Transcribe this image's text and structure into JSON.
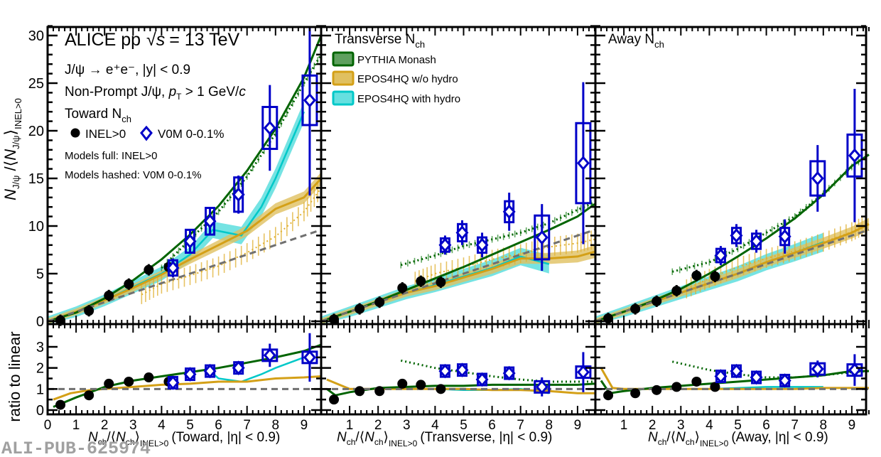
{
  "chart_data": {
    "type": "scatter",
    "title": "ALICE pp √s = 13 TeV",
    "annotations": {
      "experiment": "ALICE pp",
      "sqrt_s": "s",
      "energy": "= 13 TeV",
      "decay": "J/ψ → e⁺e⁻, |y| < 0.9",
      "selection": "Non-Prompt J/ψ, pT > 1 GeV/c",
      "region_toward": "Toward N",
      "region_transverse": "Transverse N",
      "region_away": "Away N",
      "sub_ch": "ch",
      "models_full": "Models full: INEL>0",
      "models_hashed": "Models hashed: V0M 0-0.1%",
      "watermark": "ALI-PUB-625974"
    },
    "legend": {
      "data": [
        {
          "name": "INEL>0",
          "marker": "circle",
          "color": "#000000"
        },
        {
          "name": "V0M 0-0.1%",
          "marker": "open-diamond",
          "color": "#0000c8"
        }
      ],
      "models": [
        {
          "name": "PYTHIA Monash",
          "color": "#006400",
          "fill": "#5fa05f"
        },
        {
          "name": "EPOS4HQ w/o hydro",
          "color": "#d4a017",
          "fill": "#e0c060"
        },
        {
          "name": "EPOS4HQ with hydro",
          "color": "#00c8c8",
          "fill": "#66e0e0"
        }
      ],
      "placement": "top-left"
    },
    "ylabel_top": "N_J/ψ / ⟨N_J/ψ⟩_INEL>0",
    "ylabel_bottom": "ratio to linear",
    "ylim_top": [
      -0.5,
      32
    ],
    "ylim_bottom": [
      -0.2,
      4
    ],
    "yticks_top": [
      "0",
      "5",
      "10",
      "15",
      "20",
      "25",
      "30"
    ],
    "yticks_bottom": [
      "0",
      "1",
      "2",
      "3"
    ],
    "xticks": [
      "0",
      "1",
      "2",
      "3",
      "4",
      "5",
      "6",
      "7",
      "8",
      "9"
    ],
    "xticks_nz": [
      "1",
      "2",
      "3",
      "4",
      "5",
      "6",
      "7",
      "8",
      "9"
    ],
    "xlim": [
      0,
      9.6
    ],
    "panels": [
      {
        "name": "toward",
        "xlabel": "Nch/⟨Nch⟩INEL>0 (Toward, |η| < 0.9)",
        "xlabel_suffix": "(Toward, |η| < 0.9)",
        "inel": {
          "x": [
            0.45,
            1.45,
            2.15,
            2.85,
            3.55,
            4.25
          ],
          "y": [
            0.1,
            1.1,
            2.7,
            3.9,
            5.4,
            5.7
          ],
          "ratio": [
            0.25,
            0.7,
            1.25,
            1.35,
            1.55,
            1.35
          ]
        },
        "v0m": {
          "x": [
            4.4,
            5.0,
            5.7,
            6.7,
            7.8,
            9.2
          ],
          "y": [
            5.6,
            8.4,
            10.5,
            13.3,
            20.3,
            23.2
          ],
          "err": [
            1.0,
            1.3,
            1.5,
            2.0,
            4.5,
            10.0
          ],
          "sys": [
            0.8,
            1.2,
            1.4,
            1.8,
            2.2,
            2.6
          ],
          "ratio": [
            1.3,
            1.7,
            1.85,
            2.0,
            2.6,
            2.5
          ],
          "ratio_err": [
            0.2,
            0.25,
            0.3,
            0.3,
            0.55,
            1.15
          ]
        },
        "pythia": {
          "x": [
            0,
            1,
            2,
            3,
            4,
            5,
            6,
            7,
            8,
            9,
            9.6
          ],
          "y": [
            0,
            0.9,
            2.4,
            4.3,
            6.5,
            9.1,
            12.1,
            15.8,
            20.2,
            25.6,
            30.0
          ]
        },
        "pythia_v0m": {
          "x": [
            4.0,
            5,
            6,
            7,
            8,
            9,
            9.6
          ],
          "y": [
            5.6,
            8.6,
            11.5,
            15.2,
            19.7,
            25.0,
            28.0
          ]
        },
        "epos": {
          "x": [
            0,
            1,
            2,
            3,
            4,
            5,
            6,
            7,
            8,
            9,
            9.6
          ],
          "y": [
            0,
            1.0,
            2.2,
            3.5,
            4.9,
            6.5,
            8.0,
            9.5,
            11.8,
            13.0,
            15.0
          ]
        },
        "epos_v0m": {
          "x": [
            3.3,
            4,
            5,
            6,
            7,
            8,
            9,
            9.6
          ],
          "y": [
            2.8,
            3.9,
            4.8,
            5.8,
            7.2,
            8.9,
            11.5,
            14.0
          ]
        },
        "hydro": {
          "x": [
            0,
            1,
            2,
            3,
            4,
            5,
            5.8,
            6.8,
            7.5,
            8.0,
            9.0
          ],
          "y": [
            0,
            1.0,
            2.2,
            3.6,
            5.0,
            7.0,
            9.6,
            9.0,
            12.0,
            15.0,
            22.0
          ]
        },
        "linear": {
          "x": [
            0,
            9.6
          ],
          "y": [
            0,
            9.6
          ]
        },
        "pythia_ratio": {
          "x": [
            0.2,
            1,
            2,
            3,
            4,
            5,
            6,
            7,
            8,
            9,
            9.6
          ],
          "y": [
            0.15,
            0.6,
            1.1,
            1.4,
            1.6,
            1.8,
            2.0,
            2.25,
            2.5,
            2.8,
            3.1
          ]
        },
        "epos_ratio": {
          "x": [
            0.2,
            0.8,
            1.5,
            2,
            3,
            4,
            5,
            6,
            7,
            8,
            9,
            9.6
          ],
          "y": [
            0.5,
            0.8,
            0.95,
            1.0,
            1.1,
            1.2,
            1.25,
            1.35,
            1.35,
            1.5,
            1.55,
            1.6
          ]
        },
        "hydro_ratio": {
          "x": [
            5.7,
            6.0,
            6.8,
            7.5,
            8.0,
            9.0
          ],
          "y": [
            1.85,
            1.5,
            1.35,
            1.7,
            2.0,
            2.5
          ]
        }
      },
      {
        "name": "transverse",
        "xlabel": "Nch/⟨Nch⟩INEL>0 (Transverse, |η| < 0.9)",
        "xlabel_suffix": "(Transverse, |η| < 0.9)",
        "inel": {
          "x": [
            0.45,
            1.35,
            2.05,
            2.85,
            3.5,
            4.2
          ],
          "y": [
            0.2,
            1.3,
            2.0,
            3.5,
            4.2,
            4.1
          ],
          "ratio": [
            0.5,
            0.9,
            0.9,
            1.25,
            1.2,
            1.0
          ]
        },
        "v0m": {
          "x": [
            4.35,
            4.95,
            5.65,
            6.6,
            7.75,
            9.2
          ],
          "y": [
            8.0,
            9.3,
            8.0,
            11.5,
            8.8,
            16.6
          ],
          "err": [
            1.0,
            1.3,
            1.3,
            2.0,
            3.5,
            8.5
          ],
          "sys": [
            0.7,
            0.9,
            0.8,
            1.1,
            2.3,
            4.2
          ],
          "ratio": [
            1.85,
            1.9,
            1.45,
            1.75,
            1.1,
            1.8
          ],
          "ratio_err": [
            0.25,
            0.25,
            0.3,
            0.3,
            0.45,
            0.95
          ]
        },
        "pythia": {
          "x": [
            0,
            1,
            2,
            3,
            4,
            5,
            6,
            7,
            8,
            9,
            9.6
          ],
          "y": [
            0,
            1.0,
            2.1,
            3.3,
            4.5,
            5.7,
            7.0,
            8.3,
            9.6,
            11.0,
            12.3
          ]
        },
        "pythia_v0m": {
          "x": [
            2.8,
            4,
            5,
            6,
            7,
            8,
            9,
            9.6
          ],
          "y": [
            5.9,
            6.9,
            7.9,
            8.6,
            9.3,
            10.3,
            11.7,
            12.5
          ]
        },
        "epos": {
          "x": [
            0,
            1,
            2,
            3,
            4,
            5,
            6,
            7,
            8,
            9,
            9.6
          ],
          "y": [
            0,
            1.0,
            2.0,
            3.0,
            3.7,
            4.6,
            5.5,
            6.6,
            6.6,
            6.8,
            7.3
          ]
        },
        "epos_v0m": {
          "x": [
            3.3,
            4,
            5,
            6,
            7,
            8,
            9,
            9.6
          ],
          "y": [
            4.2,
            5.0,
            5.7,
            6.5,
            7.1,
            7.8,
            8.2,
            8.6
          ]
        },
        "hydro": {
          "x": [
            0,
            1,
            2,
            3,
            4,
            5,
            6,
            7,
            8
          ],
          "y": [
            0,
            1.0,
            2.0,
            3.0,
            3.8,
            4.7,
            5.6,
            6.8,
            6.0
          ]
        },
        "linear": {
          "x": [
            0,
            9.6
          ],
          "y": [
            0,
            9.6
          ]
        },
        "pythia_ratio": {
          "x": [
            0.2,
            0.5,
            1,
            2,
            3,
            4,
            5,
            6,
            7,
            8,
            9,
            9.6
          ],
          "y": [
            1.0,
            0.7,
            0.85,
            1.05,
            1.1,
            1.15,
            1.15,
            1.2,
            1.2,
            1.2,
            1.2,
            1.25
          ]
        },
        "pythia_v0m_ratio": {
          "x": [
            2.8,
            4,
            5,
            6,
            7,
            8,
            9,
            9.6
          ],
          "y": [
            2.35,
            2.0,
            1.8,
            1.6,
            1.45,
            1.35,
            1.35,
            1.35
          ]
        },
        "epos_ratio": {
          "x": [
            0.2,
            1,
            2,
            3,
            4,
            5,
            6,
            7,
            8,
            9,
            9.6
          ],
          "y": [
            1.45,
            1.0,
            1.0,
            1.0,
            1.0,
            1.0,
            0.95,
            0.95,
            0.9,
            0.8,
            0.8
          ]
        },
        "hydro_ratio": {
          "x": [
            0.2,
            1,
            2,
            3,
            4,
            5,
            6,
            7,
            8
          ],
          "y": [
            1.45,
            1.0,
            1.0,
            1.0,
            1.0,
            0.95,
            0.95,
            1.0,
            0.8
          ]
        }
      },
      {
        "name": "away",
        "xlabel": "Nch/⟨Nch⟩INEL>0 (Away, |η| < 0.9)",
        "xlabel_suffix": "(Away, |η| < 0.9)",
        "inel": {
          "x": [
            0.45,
            1.4,
            2.15,
            2.85,
            3.55,
            4.2
          ],
          "y": [
            0.3,
            1.3,
            2.1,
            3.2,
            4.8,
            4.7
          ],
          "ratio": [
            0.7,
            0.8,
            0.95,
            1.1,
            1.35,
            1.1
          ]
        },
        "v0m": {
          "x": [
            4.4,
            4.95,
            5.65,
            6.65,
            7.8,
            9.1
          ],
          "y": [
            6.9,
            9.0,
            8.4,
            8.9,
            15.0,
            17.4
          ],
          "err": [
            1.0,
            1.2,
            1.2,
            1.8,
            3.5,
            7.0
          ],
          "sys": [
            0.7,
            0.8,
            0.8,
            0.9,
            1.8,
            2.2
          ],
          "ratio": [
            1.6,
            1.85,
            1.55,
            1.4,
            1.95,
            1.9
          ],
          "ratio_err": [
            0.3,
            0.3,
            0.3,
            0.3,
            0.4,
            0.75
          ]
        },
        "pythia": {
          "x": [
            0,
            1,
            2,
            3,
            4,
            5,
            6,
            7,
            8,
            9,
            9.6
          ],
          "y": [
            0,
            1.0,
            2.1,
            3.4,
            5.0,
            6.8,
            8.7,
            10.8,
            13.3,
            16.3,
            17.5
          ]
        },
        "pythia_v0m": {
          "x": [
            2.7,
            4,
            5,
            6,
            7,
            8,
            9,
            9.6
          ],
          "y": [
            5.2,
            6.2,
            7.6,
            9.3,
            11.0,
            13.4,
            16.2,
            17.5
          ]
        },
        "epos": {
          "x": [
            0,
            1,
            2,
            3,
            4,
            5,
            6,
            7,
            8,
            9,
            9.6
          ],
          "y": [
            0,
            1.0,
            2.0,
            3.0,
            4.0,
            5.0,
            6.2,
            7.2,
            8.2,
            9.3,
            10.2
          ]
        },
        "epos_v0m": {
          "x": [
            3.2,
            4,
            5,
            6,
            7,
            8,
            9,
            9.6
          ],
          "y": [
            3.4,
            4.5,
            5.7,
            6.6,
            7.4,
            8.3,
            9.4,
            10.3
          ]
        },
        "hydro": {
          "x": [
            0,
            1,
            2,
            3,
            4,
            5,
            6,
            7,
            8
          ],
          "y": [
            0,
            1.0,
            2.0,
            3.0,
            4.0,
            5.0,
            6.2,
            7.2,
            8.3
          ]
        },
        "linear": {
          "x": [
            0,
            9.6
          ],
          "y": [
            0,
            9.6
          ]
        },
        "pythia_ratio": {
          "x": [
            0.2,
            0.5,
            1,
            2,
            3,
            4,
            5,
            6,
            7,
            8,
            9,
            9.6
          ],
          "y": [
            1.4,
            0.8,
            0.9,
            1.05,
            1.15,
            1.25,
            1.35,
            1.45,
            1.55,
            1.65,
            1.85,
            1.85
          ]
        },
        "pythia_v0m_ratio": {
          "x": [
            2.7,
            4,
            5,
            6,
            7,
            8,
            9,
            9.6
          ],
          "y": [
            2.3,
            1.9,
            1.7,
            1.55,
            1.55,
            1.65,
            1.8,
            1.85
          ]
        },
        "epos_ratio": {
          "x": [
            0.2,
            0.6,
            1,
            2,
            3,
            4,
            5,
            6,
            7,
            8,
            9,
            9.6
          ],
          "y": [
            2.0,
            1.05,
            1.0,
            1.0,
            1.0,
            1.0,
            1.0,
            1.0,
            1.0,
            1.05,
            1.05,
            1.05
          ]
        },
        "hydro_ratio": {
          "x": [
            0.2,
            0.6,
            1,
            2,
            3,
            4,
            5,
            6,
            7,
            8
          ],
          "y": [
            2.0,
            1.05,
            1.0,
            1.0,
            1.0,
            1.0,
            1.05,
            1.1,
            1.1,
            1.1
          ]
        }
      }
    ]
  }
}
